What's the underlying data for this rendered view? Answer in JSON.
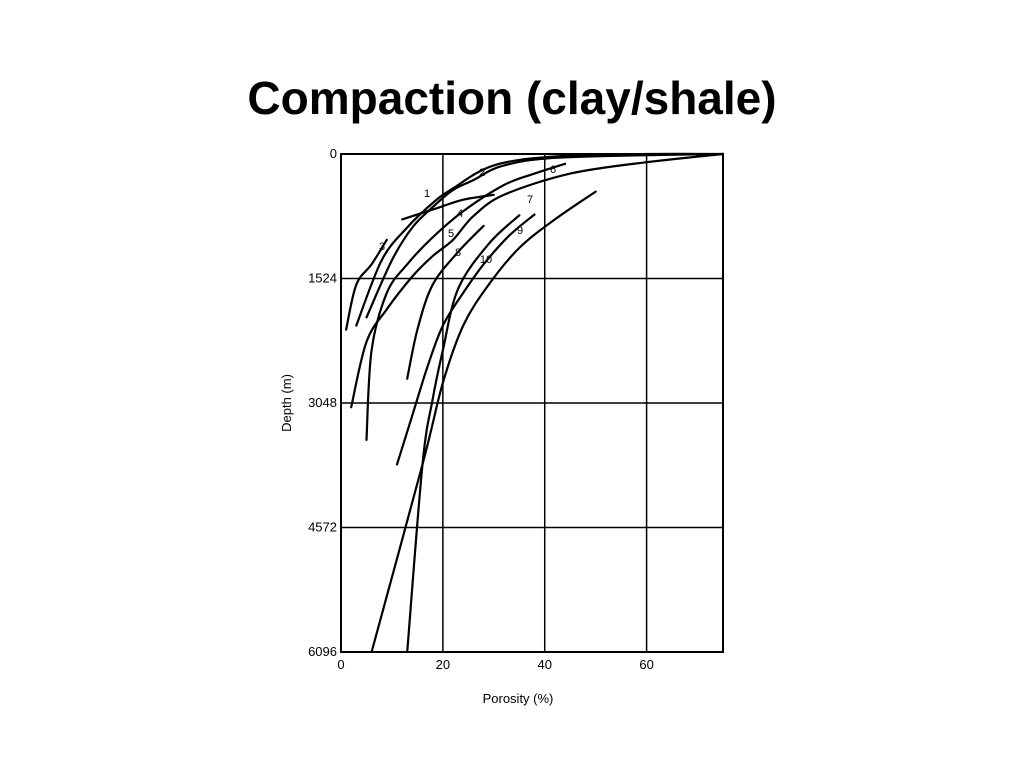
{
  "slide": {
    "title": "Compaction (clay/shale)"
  },
  "chart_data": {
    "type": "line",
    "title": "",
    "xlabel": "Porosity (%)",
    "ylabel": "Depth (m)",
    "xlim": [
      0,
      75
    ],
    "ylim": [
      0,
      6096
    ],
    "y_inverted": true,
    "grid": true,
    "legend": "none",
    "x_ticks": [
      0,
      20,
      40,
      60
    ],
    "y_ticks": [
      0,
      1524,
      3048,
      4572,
      6096
    ],
    "line_color": "#000000",
    "series": [
      {
        "name": "1",
        "points": [
          [
            3,
            2100
          ],
          [
            8,
            1300
          ],
          [
            13,
            900
          ],
          [
            18,
            600
          ],
          [
            22,
            420
          ],
          [
            30,
            140
          ],
          [
            42,
            30
          ],
          [
            60,
            0
          ],
          [
            75,
            0
          ]
        ]
      },
      {
        "name": "2",
        "points": [
          [
            5,
            2000
          ],
          [
            10,
            1300
          ],
          [
            14,
            900
          ],
          [
            18,
            650
          ],
          [
            22,
            440
          ],
          [
            26,
            320
          ],
          [
            32,
            140
          ],
          [
            44,
            40
          ],
          [
            75,
            0
          ]
        ]
      },
      {
        "name": "3",
        "points": [
          [
            1,
            2150
          ],
          [
            3,
            1600
          ],
          [
            6,
            1350
          ],
          [
            9,
            1050
          ]
        ]
      },
      {
        "name": "4",
        "points": [
          [
            12,
            800
          ],
          [
            18,
            680
          ],
          [
            24,
            560
          ],
          [
            30,
            500
          ]
        ]
      },
      {
        "name": "5",
        "points": [
          [
            2,
            3100
          ],
          [
            5,
            2300
          ],
          [
            9,
            1900
          ],
          [
            14,
            1500
          ],
          [
            18,
            1250
          ],
          [
            22,
            1050
          ],
          [
            26,
            760
          ],
          [
            32,
            500
          ],
          [
            45,
            240
          ],
          [
            60,
            100
          ],
          [
            75,
            0
          ]
        ]
      },
      {
        "name": "6",
        "points": [
          [
            5,
            3500
          ],
          [
            6,
            2400
          ],
          [
            9,
            1700
          ],
          [
            13,
            1350
          ],
          [
            18,
            1020
          ],
          [
            24,
            700
          ],
          [
            32,
            380
          ],
          [
            38,
            240
          ],
          [
            44,
            120
          ]
        ]
      },
      {
        "name": "7",
        "points": [
          [
            11,
            3800
          ],
          [
            14,
            3200
          ],
          [
            17,
            2600
          ],
          [
            20,
            2100
          ],
          [
            24,
            1700
          ],
          [
            28,
            1350
          ],
          [
            33,
            1000
          ],
          [
            38,
            740
          ]
        ]
      },
      {
        "name": "8",
        "points": [
          [
            13,
            6096
          ],
          [
            16,
            3800
          ],
          [
            18,
            3000
          ],
          [
            20,
            2400
          ],
          [
            23,
            1650
          ],
          [
            29,
            1100
          ],
          [
            35,
            750
          ]
        ]
      },
      {
        "name": "9",
        "points": [
          [
            6,
            6096
          ],
          [
            16,
            3800
          ],
          [
            20,
            2800
          ],
          [
            24,
            2100
          ],
          [
            29,
            1600
          ],
          [
            35,
            1150
          ],
          [
            42,
            800
          ],
          [
            50,
            460
          ]
        ]
      },
      {
        "name": "10",
        "points": [
          [
            13,
            2750
          ],
          [
            15,
            2150
          ],
          [
            18,
            1600
          ],
          [
            23,
            1200
          ],
          [
            28,
            880
          ]
        ]
      }
    ]
  }
}
